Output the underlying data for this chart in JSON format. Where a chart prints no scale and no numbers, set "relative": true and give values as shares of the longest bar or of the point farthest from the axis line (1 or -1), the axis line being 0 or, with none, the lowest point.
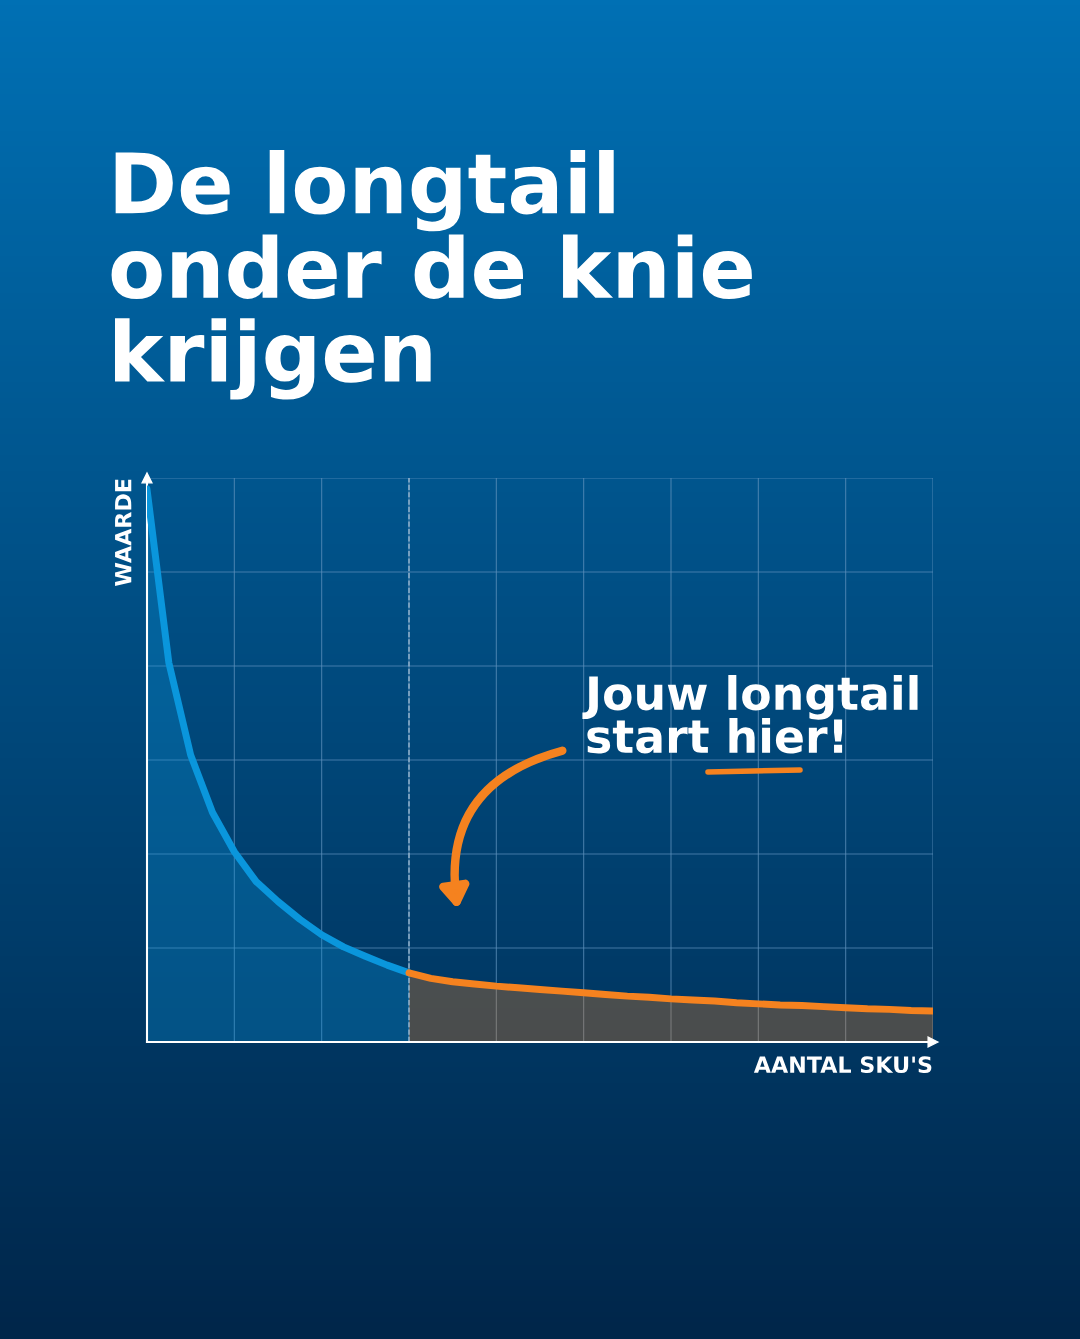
{
  "chart_data": {
    "type": "area",
    "title": "De longtail\nonder de knie\nkrijgen",
    "xlabel": "AANTAL SKU'S",
    "ylabel": "WAARDE",
    "relative": true,
    "categories": [
      null,
      null,
      null,
      null,
      null,
      null,
      null,
      null,
      null,
      null,
      null,
      null,
      null,
      null,
      null,
      null,
      null,
      null,
      null,
      null,
      null,
      null,
      null,
      null,
      null,
      null,
      null,
      null,
      null,
      null,
      null,
      null,
      null,
      null,
      null,
      null,
      null
    ],
    "tick_labels": false,
    "grid": true,
    "legend": false,
    "series": [
      {
        "color": "#0a96dc",
        "values": [
          1,
          0.686,
          0.519,
          0.415,
          0.344,
          0.29,
          0.254,
          0.222,
          0.194,
          0.172,
          0.155,
          0.139,
          0.125,
          null,
          null,
          null,
          null,
          null,
          null,
          null,
          null,
          null,
          null,
          null,
          null,
          null,
          null,
          null,
          null,
          null,
          null,
          null,
          null,
          null,
          null,
          null,
          null
        ]
      },
      {
        "color": "#f5821f",
        "values": [
          null,
          null,
          null,
          null,
          null,
          null,
          null,
          null,
          null,
          null,
          null,
          null,
          0.125,
          0.115,
          0.109,
          0.105,
          0.101,
          0.098,
          0.095,
          0.092,
          0.089,
          0.086,
          0.083,
          0.081,
          0.078,
          0.076,
          0.074,
          0.071,
          0.069,
          0.067,
          0.066,
          0.064,
          0.062,
          0.06,
          0.059,
          0.057,
          0.056
        ]
      }
    ],
    "ref_lines": [
      {
        "axis": "x",
        "color": "#9ab8d0",
        "line_style": "dashed"
      }
    ],
    "annotations": [
      "Jouw longtail\nstart hier!"
    ]
  }
}
